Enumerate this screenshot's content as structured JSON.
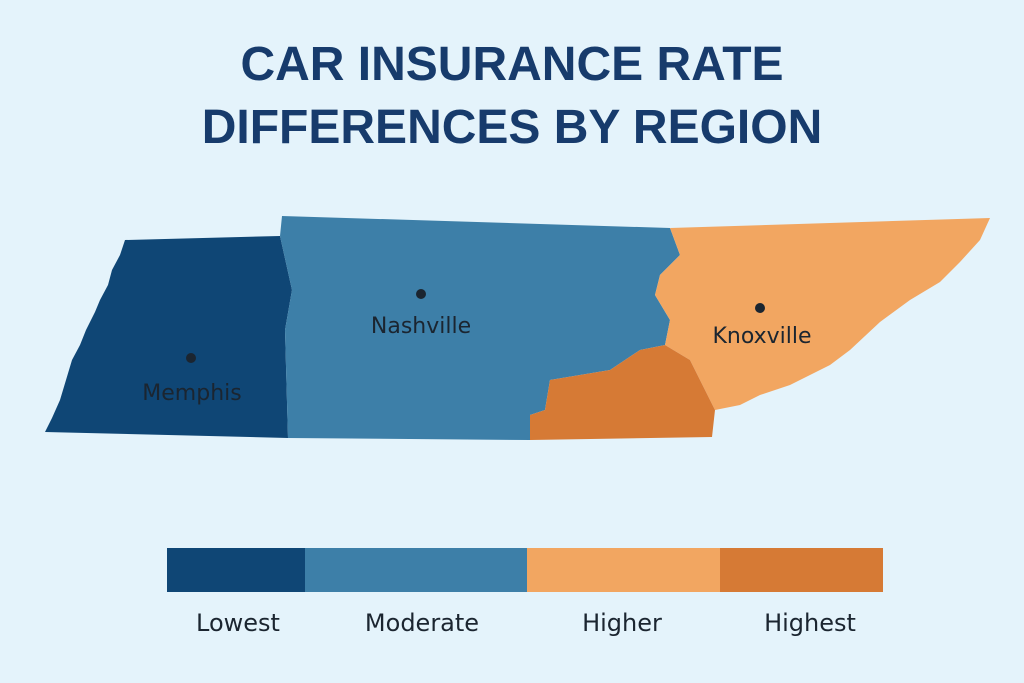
{
  "title": [
    "CAR INSURANCE RATE",
    "DIFFERENCES BY REGION"
  ],
  "cities": [
    {
      "label": "Memphis"
    },
    {
      "label": "Nashville"
    },
    {
      "label": "Knoxville"
    }
  ],
  "legend": [
    {
      "label": "Lowest",
      "color": "#0f4675"
    },
    {
      "label": "Moderate",
      "color": "#3d7fa8"
    },
    {
      "label": "Higher",
      "color": "#f2a661"
    },
    {
      "label": "Highest",
      "color": "#d67a35"
    }
  ]
}
